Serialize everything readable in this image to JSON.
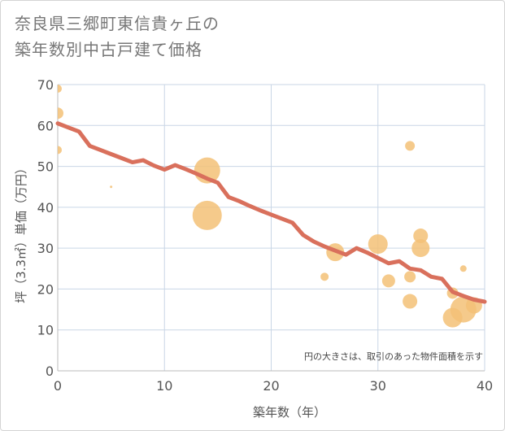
{
  "chart_data": {
    "type": "scatter",
    "title_line1": "奈良県三郷町東信貴ヶ丘の",
    "title_line2": "築年数別中古戸建て価格",
    "xlabel": "築年数（年）",
    "ylabel": "坪（3.3㎡）単価（万円）",
    "xlim": [
      0,
      40
    ],
    "ylim": [
      0,
      70
    ],
    "x_ticks": [
      0,
      10,
      20,
      30,
      40
    ],
    "y_ticks": [
      0,
      10,
      20,
      30,
      40,
      50,
      60,
      70
    ],
    "grid": true,
    "note": "円の大きさは、取引のあった物件面積を示す",
    "colors": {
      "bubble": "#f3c177",
      "trend": "#d9705c",
      "grid": "#c9d6e6",
      "axis": "#bbbbbb"
    },
    "bubbles": [
      {
        "x": 0,
        "y": 69,
        "size": 5
      },
      {
        "x": 0,
        "y": 63,
        "size": 7
      },
      {
        "x": 0,
        "y": 54,
        "size": 5
      },
      {
        "x": 5,
        "y": 45,
        "size": 1.5
      },
      {
        "x": 14,
        "y": 49,
        "size": 16
      },
      {
        "x": 14,
        "y": 38,
        "size": 18
      },
      {
        "x": 25,
        "y": 23,
        "size": 5
      },
      {
        "x": 26,
        "y": 29,
        "size": 11
      },
      {
        "x": 30,
        "y": 31,
        "size": 12
      },
      {
        "x": 31,
        "y": 22,
        "size": 8
      },
      {
        "x": 33,
        "y": 55,
        "size": 6
      },
      {
        "x": 33,
        "y": 23,
        "size": 7
      },
      {
        "x": 33,
        "y": 17,
        "size": 9
      },
      {
        "x": 34,
        "y": 33,
        "size": 9
      },
      {
        "x": 34,
        "y": 30,
        "size": 11
      },
      {
        "x": 37,
        "y": 19,
        "size": 7
      },
      {
        "x": 37,
        "y": 13,
        "size": 12
      },
      {
        "x": 38,
        "y": 25,
        "size": 4
      },
      {
        "x": 38,
        "y": 15,
        "size": 16
      },
      {
        "x": 39,
        "y": 16,
        "size": 10
      }
    ],
    "trend": {
      "x": [
        0,
        1,
        2,
        3,
        4,
        5,
        6,
        7,
        8,
        9,
        10,
        11,
        12,
        13,
        14,
        15,
        16,
        17,
        18,
        19,
        20,
        21,
        22,
        23,
        24,
        25,
        26,
        27,
        28,
        29,
        30,
        31,
        32,
        33,
        34,
        35,
        36,
        37,
        38,
        39,
        40
      ],
      "y": [
        60.5,
        59.5,
        58.5,
        55,
        54,
        53,
        52,
        51,
        51.5,
        50.2,
        49.2,
        50.3,
        49.3,
        48.2,
        47,
        46,
        42.5,
        41.5,
        40.3,
        39.2,
        38.2,
        37.2,
        36.2,
        33.2,
        31.6,
        30.4,
        29.4,
        28.4,
        30,
        28.9,
        27.6,
        26.3,
        26.8,
        25,
        24.6,
        23,
        22.5,
        19.3,
        18.3,
        17.4,
        16.9
      ]
    }
  }
}
